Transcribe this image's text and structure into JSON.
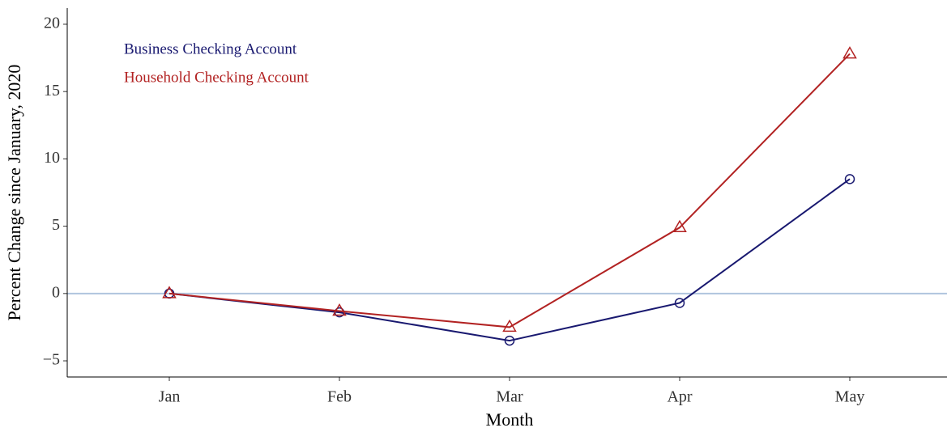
{
  "chart_data": {
    "type": "line",
    "x_label": "Month",
    "y_label": "Percent Change since January, 2020",
    "categories": [
      "Jan",
      "Feb",
      "Mar",
      "Apr",
      "May"
    ],
    "series": [
      {
        "name": "Business Checking Account",
        "color": "#191970",
        "marker": "circle",
        "values": [
          0,
          -1.4,
          -3.5,
          -0.7,
          8.5
        ]
      },
      {
        "name": "Household Checking Account",
        "color": "#b22222",
        "marker": "triangle",
        "values": [
          0,
          -1.3,
          -2.5,
          4.9,
          17.8
        ]
      }
    ],
    "ylim": [
      -6.2,
      21.2
    ],
    "yticks": [
      {
        "value": -5,
        "label": "−5"
      },
      0,
      5,
      10,
      15,
      20
    ],
    "reference_line": 0,
    "reference_color": "#b0c4de",
    "legend": "top-left"
  }
}
